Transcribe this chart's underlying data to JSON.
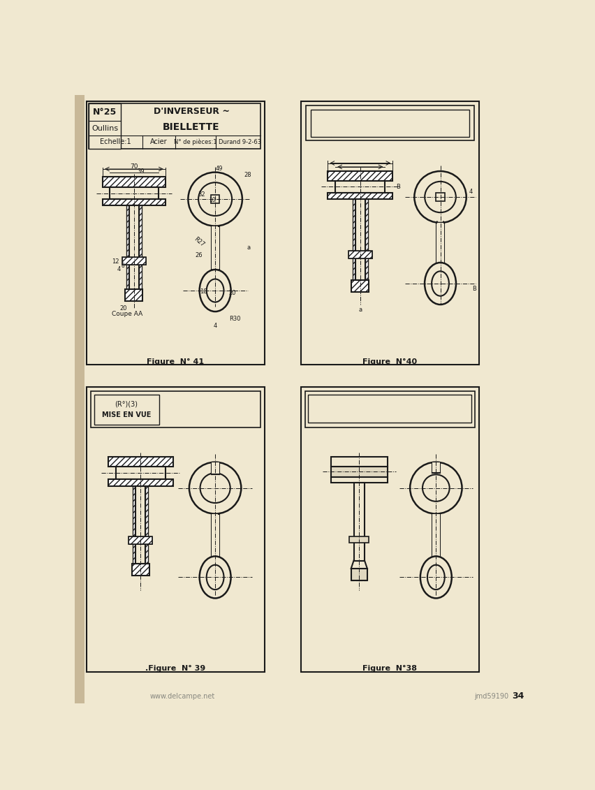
{
  "page_bg": "#f0e8d0",
  "panel_bg": "#f0e8d0",
  "gutter_bg": "#c8b898",
  "line_color": "#1a1a1a",
  "fig_labels": [
    "Figure  N° 41",
    "Figure  N°40",
    ".Figure  N° 39",
    "Figure  N°38"
  ],
  "page_number": "34",
  "watermark": "www.delcampe.net",
  "watermark2": "jmd59190",
  "title_text": [
    "D'INVERSEUR ~",
    "BIELLETTE"
  ],
  "no25": "N°25",
  "oullins": "Oullins",
  "echelle": "Echelle:1",
  "acier": "Acier",
  "nb_pieces": "N° de pièces:1",
  "durand": "Durand 9-2-63",
  "dim_70": "70",
  "dim_39": "39",
  "dim_49": "49",
  "dim_28": "28",
  "dim_32": "32",
  "dim_a": "a",
  "dim_r27": "R27",
  "dim_26": "26",
  "dim_20": "20",
  "dim_18": "18",
  "dim_r30": "R30",
  "dim_4": "4",
  "dim_12": "12",
  "dim_b": "B",
  "coupe_aa": "Coupe AA",
  "mise_en_vue": "MISE EN VUE",
  "choix": "(R°)(3)"
}
